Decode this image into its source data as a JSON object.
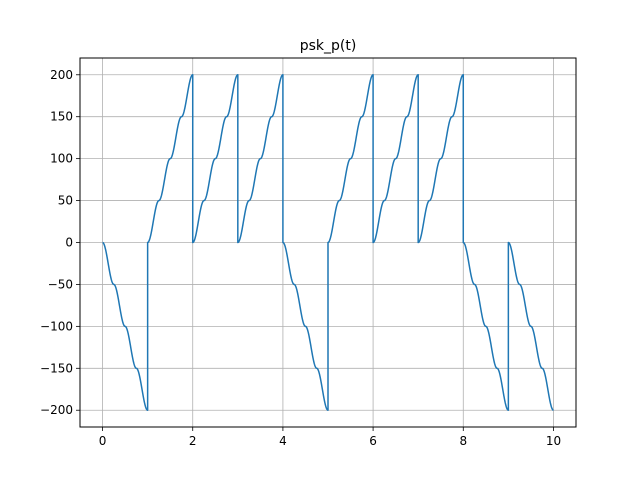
{
  "chart_data": {
    "type": "line",
    "title": "psk_p(t)",
    "xlabel": "",
    "ylabel": "",
    "xlim": [
      -0.5,
      10.5
    ],
    "ylim": [
      -220,
      220
    ],
    "xticks": [
      0,
      2,
      4,
      6,
      8,
      10
    ],
    "yticks": [
      -200,
      -150,
      -100,
      -50,
      0,
      50,
      100,
      150,
      200
    ],
    "grid": true,
    "symbol_period": 1,
    "step_size": 50,
    "steps_per_symbol": 4,
    "symbols": [
      {
        "start": 0,
        "end": 1,
        "direction": -1
      },
      {
        "start": 1,
        "end": 2,
        "direction": 1
      },
      {
        "start": 2,
        "end": 3,
        "direction": 1
      },
      {
        "start": 3,
        "end": 4,
        "direction": 1
      },
      {
        "start": 4,
        "end": 5,
        "direction": -1
      },
      {
        "start": 5,
        "end": 6,
        "direction": 1
      },
      {
        "start": 6,
        "end": 7,
        "direction": 1
      },
      {
        "start": 7,
        "end": 8,
        "direction": 1
      },
      {
        "start": 8,
        "end": 9,
        "direction": -1
      },
      {
        "start": 9,
        "end": 10,
        "direction": -1
      }
    ],
    "series": [
      {
        "color": "#1f77b4"
      }
    ]
  }
}
